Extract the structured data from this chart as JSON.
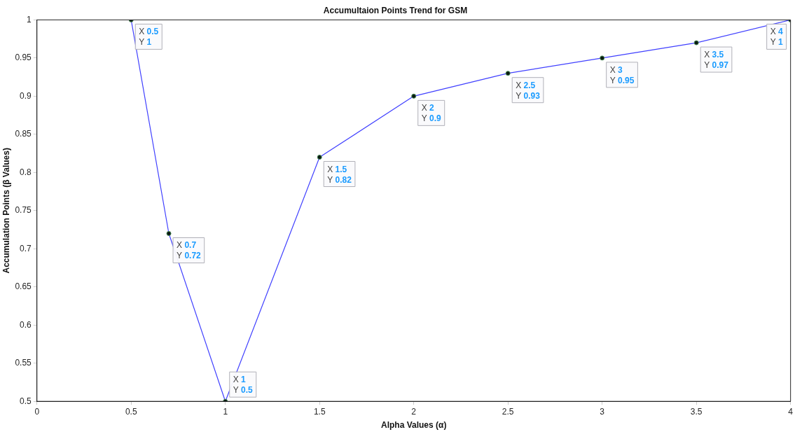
{
  "chart_data": {
    "type": "line",
    "title": "Accumultaion Points Trend for GSM",
    "xlabel": "Alpha Values (α)",
    "ylabel": "Accumulation Points (β Values)",
    "x": [
      0.5,
      0.7,
      1,
      1.5,
      2,
      2.5,
      3,
      3.5,
      4
    ],
    "series": [
      {
        "color": "#4040ff",
        "values": [
          1,
          0.72,
          0.5,
          0.82,
          0.9,
          0.93,
          0.95,
          0.97,
          1
        ],
        "value_labels": [
          "X 0.5\nY 1",
          "X 0.7\nY 0.72",
          "X 1\nY 0.5",
          "X 1.5\nY 0.82",
          "X 2\nY 0.9",
          "X 2.5\nY 0.93",
          "X 3\nY 0.95",
          "X 3.5\nY 0.97",
          "X 4\nY 1"
        ]
      }
    ],
    "xlim": [
      0,
      4
    ],
    "xticks": [
      0,
      0.5,
      1,
      1.5,
      2,
      2.5,
      3,
      3.5,
      4
    ],
    "ylim": [
      0.5,
      1
    ],
    "yticks": [
      0.5,
      0.55,
      0.6,
      0.65,
      0.7,
      0.75,
      0.8,
      0.85,
      0.9,
      0.95,
      1
    ],
    "grid": false,
    "legend": false,
    "marker": "circle",
    "line_style": "solid"
  }
}
